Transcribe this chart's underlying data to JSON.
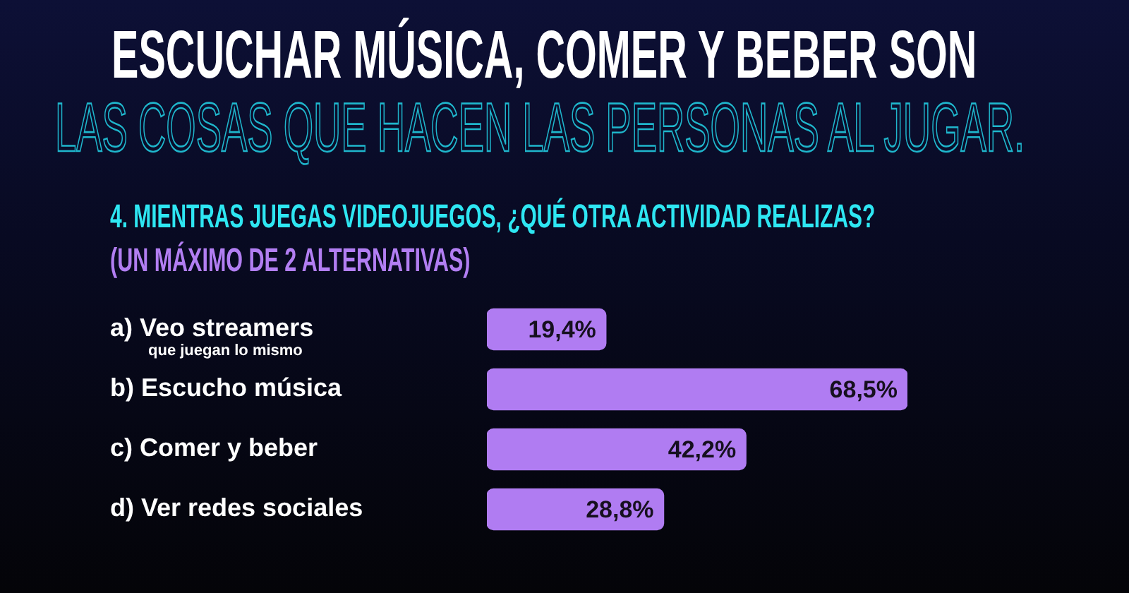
{
  "chart_data": {
    "type": "bar",
    "orientation": "horizontal",
    "title": "ESCUCHAR MÚSICA, COMER Y BEBER SON",
    "subtitle": "LAS COSAS QUE HACEN LAS PERSONAS AL JUGAR.",
    "annotations": [
      "4. MIENTRAS JUEGAS VIDEOJUEGOS, ¿QUÉ OTRA ACTIVIDAD REALIZAS?",
      "(UN MÁXIMO DE 2 ALTERNATIVAS)"
    ],
    "categories": [
      "a) Veo streamers\nque juegan lo mismo",
      "b) Escucho música",
      "c) Comer y beber",
      "d) Ver redes sociales"
    ],
    "values": [
      19.4,
      68.5,
      42.2,
      28.8
    ],
    "color": "#b07cf2",
    "value_labels": [
      "19,4%",
      "68,5%",
      "42,2%",
      "28,8%"
    ]
  }
}
